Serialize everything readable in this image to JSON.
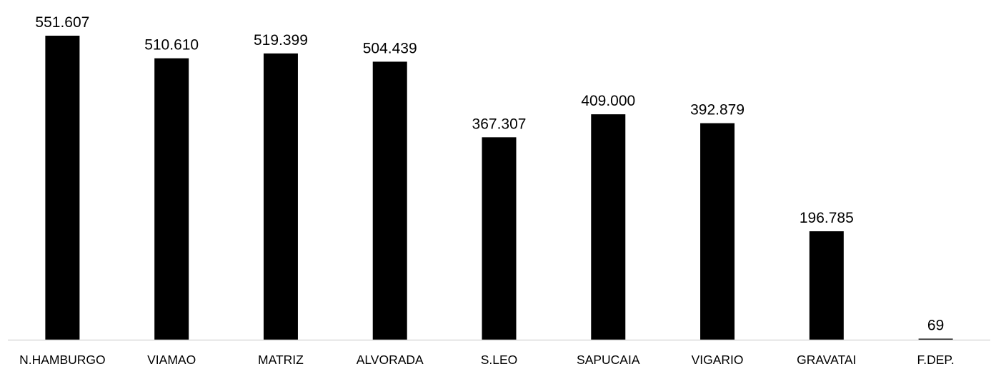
{
  "chart_data": {
    "type": "bar",
    "categories": [
      "N.HAMBURGO",
      "VIAMAO",
      "MATRIZ",
      "ALVORADA",
      "S.LEO",
      "SAPUCAIA",
      "VIGARIO",
      "GRAVATAI",
      "F.DEP."
    ],
    "values": [
      551607,
      510610,
      519399,
      504439,
      367307,
      409000,
      392879,
      196785,
      69
    ],
    "data_labels": [
      "551.607",
      "510.610",
      "519.399",
      "504.439",
      "367.307",
      "409.000",
      "392.879",
      "196.785",
      "69"
    ],
    "title": "",
    "xlabel": "",
    "ylabel": "",
    "ylim": [
      0,
      551607
    ],
    "grid": false,
    "legend": "none",
    "colors": {
      "bar": "#000000",
      "axis": "#d9d9d9",
      "text": "#000000"
    }
  }
}
